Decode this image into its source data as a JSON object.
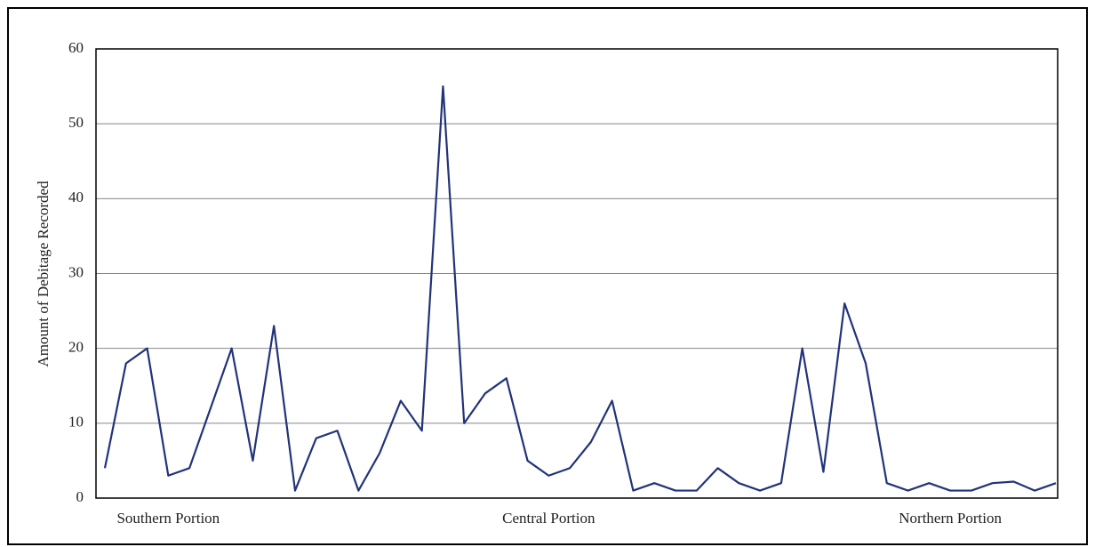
{
  "chart_data": {
    "type": "line",
    "y_label": "Amount of Debitage Recorded",
    "categories": [
      null,
      null,
      null,
      "Southern Portion",
      null,
      null,
      null,
      null,
      null,
      null,
      null,
      null,
      null,
      null,
      null,
      null,
      null,
      null,
      null,
      null,
      null,
      "Central Portion",
      null,
      null,
      null,
      null,
      null,
      null,
      null,
      null,
      null,
      null,
      null,
      null,
      null,
      null,
      null,
      null,
      null,
      null,
      "Northern Portion",
      null,
      null,
      null,
      null,
      null
    ],
    "series": [
      {
        "name": "Debitage",
        "color": "#22337a",
        "values": [
          4,
          18,
          20,
          3,
          4,
          12,
          20,
          5,
          23,
          1,
          8,
          9,
          1,
          6,
          13,
          9,
          55,
          10,
          14,
          16,
          5,
          3,
          4,
          7.5,
          13,
          1,
          2,
          1,
          1,
          4,
          2,
          1,
          2,
          20,
          3.5,
          26,
          18,
          2,
          1,
          2,
          1,
          1,
          2,
          2.2,
          1,
          2
        ]
      }
    ],
    "ylim": [
      0,
      60
    ],
    "yticks": [
      0,
      10,
      20,
      30,
      40,
      50,
      60
    ],
    "grid": true
  }
}
